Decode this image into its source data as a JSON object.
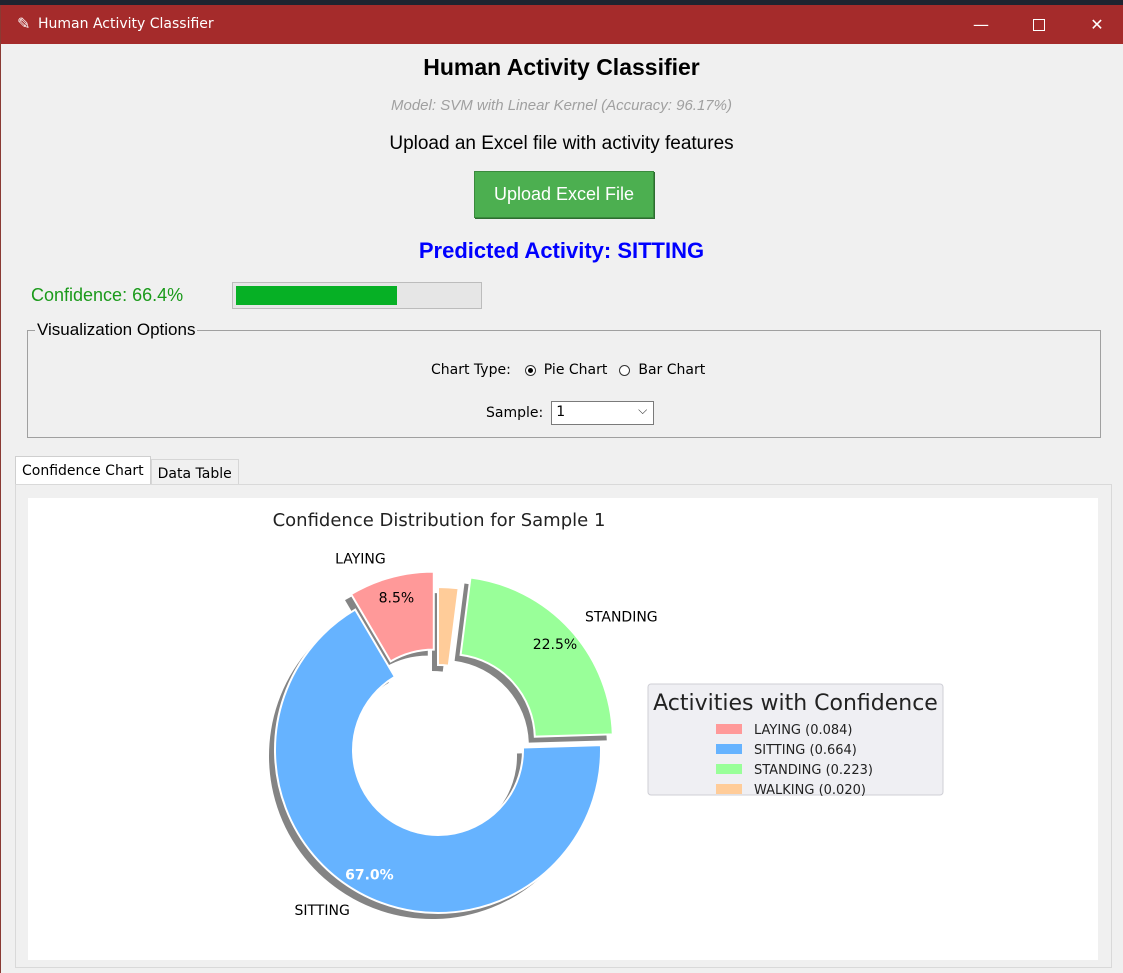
{
  "window": {
    "title": "Human Activity Classifier"
  },
  "header": {
    "title": "Human Activity Classifier",
    "model_info": "Model: SVM with Linear Kernel (Accuracy: 96.17%)",
    "prompt": "Upload an Excel file with activity features",
    "upload_label": "Upload Excel File",
    "prediction": "Predicted Activity: SITTING"
  },
  "confidence": {
    "label": "Confidence: 66.4%",
    "value": 0.664
  },
  "options": {
    "group_label": "Visualization Options",
    "chart_type_label": "Chart Type:",
    "pie_label": "Pie Chart",
    "bar_label": "Bar Chart",
    "selected_chart": "pie",
    "sample_label": "Sample:",
    "sample_value": "1"
  },
  "tabs": [
    {
      "label": "Confidence Chart",
      "active": true
    },
    {
      "label": "Data Table",
      "active": false
    }
  ],
  "chart_data": {
    "type": "pie",
    "title": "Confidence Distribution for Sample 1",
    "donut": true,
    "shadow": true,
    "categories": [
      "LAYING",
      "SITTING",
      "STANDING",
      "WALKING"
    ],
    "values": [
      0.084,
      0.664,
      0.223,
      0.02
    ],
    "pct_labels": [
      "8.5%",
      "67.0%",
      "22.5%",
      ""
    ],
    "colors": [
      "#ff9999",
      "#66b3ff",
      "#99ff99",
      "#ffcc99"
    ],
    "explode": [
      0.1,
      0,
      0.1,
      0
    ],
    "legend": {
      "title": "Activities with Confidence",
      "entries": [
        "LAYING (0.084)",
        "SITTING (0.664)",
        "STANDING (0.223)",
        "WALKING (0.020)"
      ],
      "placement": "right"
    }
  },
  "icons": {
    "app": "feather-icon",
    "minimize": "minimize-icon",
    "maximize": "maximize-icon",
    "close": "close-icon",
    "dropdown": "chevron-down-icon"
  }
}
